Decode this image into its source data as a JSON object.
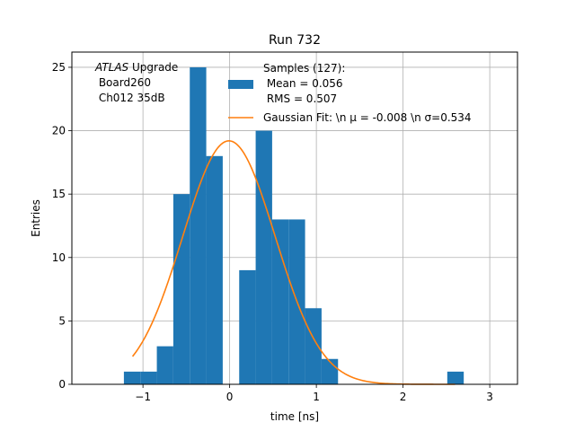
{
  "chart_data": {
    "type": "bar",
    "title": "Run 732",
    "xlabel": "time [ns]",
    "ylabel": "Entries",
    "xlim": [
      -1.82,
      3.32
    ],
    "ylim": [
      0,
      26.2
    ],
    "xticks": [
      -1,
      0,
      1,
      2,
      3
    ],
    "yticks": [
      0,
      5,
      10,
      15,
      20,
      25
    ],
    "grid": true,
    "legend_placement": "top-right",
    "bar_color": "#1f77b4",
    "fit_color": "#ff7f0e",
    "bins": [
      {
        "x0": -1.22,
        "x1": -1.03,
        "count": 1
      },
      {
        "x0": -1.03,
        "x1": -0.84,
        "count": 1
      },
      {
        "x0": -0.84,
        "x1": -0.65,
        "count": 3
      },
      {
        "x0": -0.65,
        "x1": -0.46,
        "count": 15
      },
      {
        "x0": -0.46,
        "x1": -0.27,
        "count": 25
      },
      {
        "x0": -0.27,
        "x1": -0.08,
        "count": 18
      },
      {
        "x0": -0.08,
        "x1": 0.11,
        "count": 0
      },
      {
        "x0": 0.11,
        "x1": 0.3,
        "count": 9
      },
      {
        "x0": 0.3,
        "x1": 0.49,
        "count": 20
      },
      {
        "x0": 0.49,
        "x1": 0.68,
        "count": 13
      },
      {
        "x0": 0.68,
        "x1": 0.87,
        "count": 13
      },
      {
        "x0": 0.87,
        "x1": 1.06,
        "count": 6
      },
      {
        "x0": 1.06,
        "x1": 1.25,
        "count": 2
      },
      {
        "x0": 2.51,
        "x1": 2.7,
        "count": 1
      }
    ],
    "fit": {
      "type": "gaussian",
      "mu": -0.008,
      "sigma": 0.534,
      "amplitude": 19.2,
      "x_range": [
        -1.12,
        2.6
      ]
    },
    "legend": {
      "samples_line1": "Samples (127):",
      "samples_line2": " Mean = 0.056",
      "samples_line3": " RMS = 0.507",
      "fit_label": "Gaussian Fit: \\n μ = -0.008 \\n σ=0.534"
    },
    "annotation": {
      "line1_italic": "ATLAS",
      "line1_rest": " Upgrade",
      "line2": " Board260",
      "line3": " Ch012 35dB"
    }
  }
}
